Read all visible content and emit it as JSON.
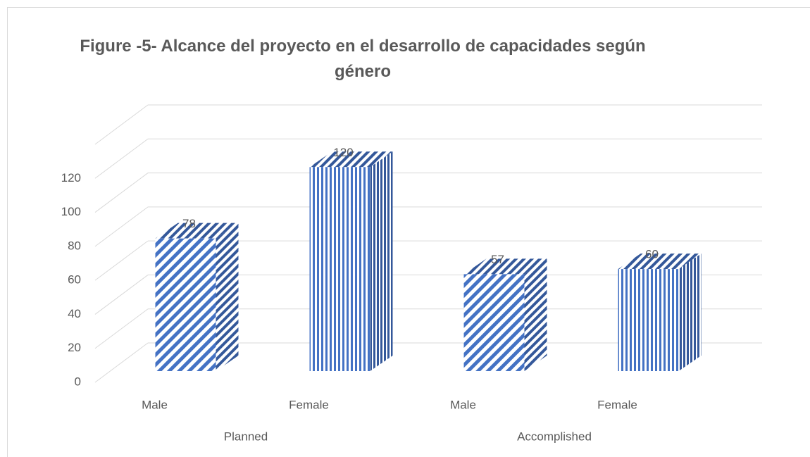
{
  "chart_data": {
    "type": "bar",
    "title": "Figure -5- Alcance del proyecto en el desarrollo de capacidades según género",
    "categories": [
      "Male",
      "Female",
      "Male",
      "Female"
    ],
    "groups": [
      "Planned",
      "Accomplished"
    ],
    "values": [
      78,
      120,
      57,
      60
    ],
    "color": "#4472c4",
    "ylim": [
      0,
      140
    ],
    "yticks": [
      0,
      20,
      40,
      60,
      80,
      100,
      120
    ],
    "grid": true
  }
}
